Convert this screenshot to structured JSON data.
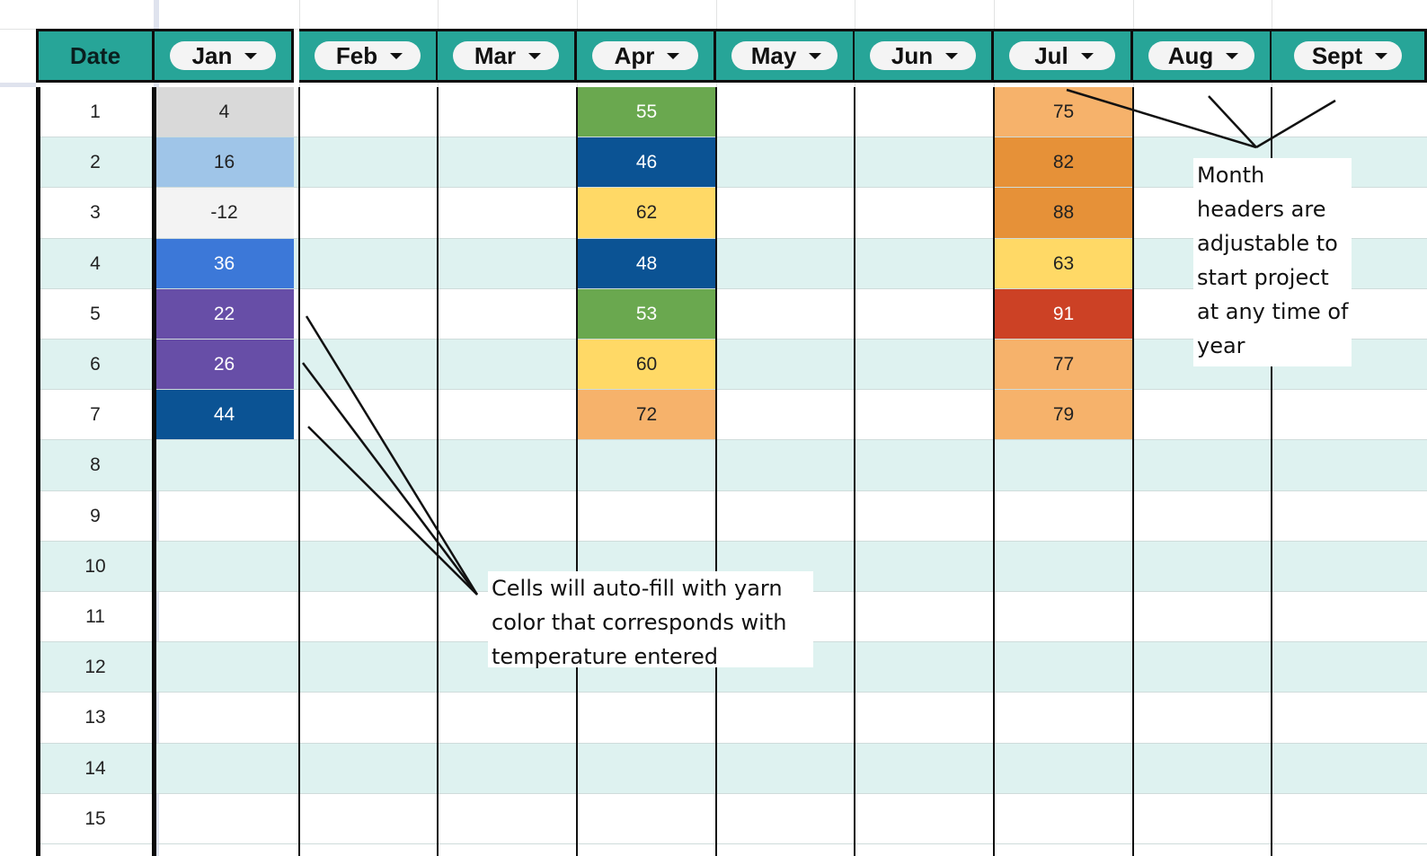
{
  "header": {
    "date_label": "Date",
    "months": [
      "Jan",
      "Feb",
      "Mar",
      "Apr",
      "May",
      "Jun",
      "Jul",
      "Aug",
      "Sept"
    ]
  },
  "rows": [
    "1",
    "2",
    "3",
    "4",
    "5",
    "6",
    "7",
    "8",
    "9",
    "10",
    "11",
    "12",
    "13",
    "14",
    "15"
  ],
  "filled": {
    "Jan": [
      {
        "value": "4",
        "bg": "#d9d9d9",
        "fg": "#222222"
      },
      {
        "value": "16",
        "bg": "#9fc5e8",
        "fg": "#222222"
      },
      {
        "value": "-12",
        "bg": "#f3f3f3",
        "fg": "#222222"
      },
      {
        "value": "36",
        "bg": "#3c78d8",
        "fg": "#ffffff"
      },
      {
        "value": "22",
        "bg": "#674ea7",
        "fg": "#ffffff"
      },
      {
        "value": "26",
        "bg": "#674ea7",
        "fg": "#ffffff"
      },
      {
        "value": "44",
        "bg": "#0b5394",
        "fg": "#ffffff"
      }
    ],
    "Apr": [
      {
        "value": "55",
        "bg": "#6aa84f",
        "fg": "#ffffff"
      },
      {
        "value": "46",
        "bg": "#0b5394",
        "fg": "#ffffff"
      },
      {
        "value": "62",
        "bg": "#ffd966",
        "fg": "#222222"
      },
      {
        "value": "48",
        "bg": "#0b5394",
        "fg": "#ffffff"
      },
      {
        "value": "53",
        "bg": "#6aa84f",
        "fg": "#ffffff"
      },
      {
        "value": "60",
        "bg": "#ffd966",
        "fg": "#222222"
      },
      {
        "value": "72",
        "bg": "#f6b26b",
        "fg": "#222222"
      }
    ],
    "Jul": [
      {
        "value": "75",
        "bg": "#f6b26b",
        "fg": "#222222"
      },
      {
        "value": "82",
        "bg": "#e69138",
        "fg": "#222222"
      },
      {
        "value": "88",
        "bg": "#e69138",
        "fg": "#222222"
      },
      {
        "value": "63",
        "bg": "#ffd966",
        "fg": "#222222"
      },
      {
        "value": "91",
        "bg": "#cc4125",
        "fg": "#ffffff"
      },
      {
        "value": "77",
        "bg": "#f6b26b",
        "fg": "#222222"
      },
      {
        "value": "79",
        "bg": "#f6b26b",
        "fg": "#222222"
      }
    ]
  },
  "annotations": {
    "cells_note": [
      "Cells will auto-fill with yarn",
      "color that corresponds with",
      "temperature entered"
    ],
    "headers_note": [
      "Month",
      "headers are",
      "adjustable to",
      "start project",
      "at any time of",
      "year"
    ]
  },
  "colors": {
    "header_teal": "#27a598",
    "alt_row": "#def2f0",
    "grid_dark": "#111111"
  }
}
